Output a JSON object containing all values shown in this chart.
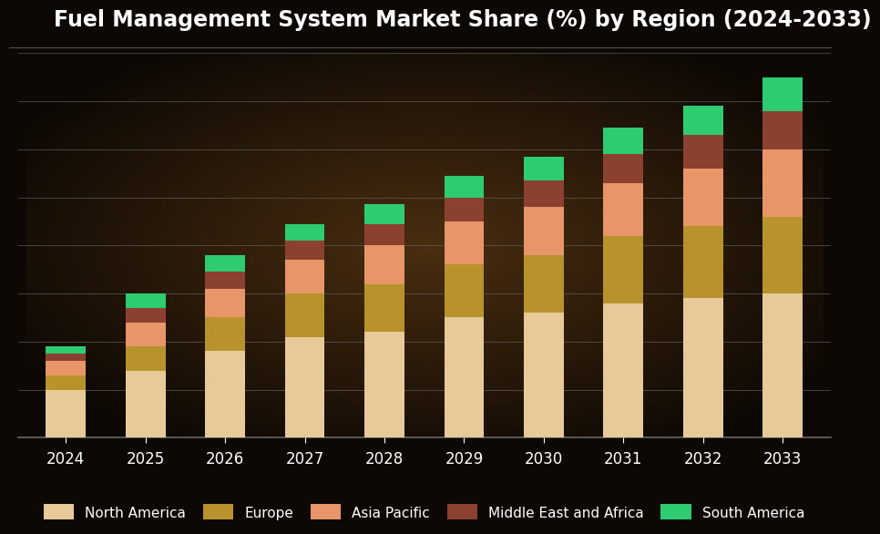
{
  "title": "Fuel Management System Market Share (%) by Region (2024-2033)",
  "years": [
    2024,
    2025,
    2026,
    2027,
    2028,
    2029,
    2030,
    2031,
    2032,
    2033
  ],
  "regions": [
    "North America",
    "Europe",
    "Asia Pacific",
    "Middle East and Africa",
    "South America"
  ],
  "colors": [
    "#E8C99A",
    "#B8922A",
    "#E8956A",
    "#8B4030",
    "#2ECC71"
  ],
  "data": {
    "North America": [
      10,
      14,
      18,
      21,
      22,
      25,
      26,
      28,
      29,
      30
    ],
    "Europe": [
      3,
      5,
      7,
      9,
      10,
      11,
      12,
      14,
      15,
      16
    ],
    "Asia Pacific": [
      3,
      5,
      6,
      7,
      8,
      9,
      10,
      11,
      12,
      14
    ],
    "Middle East and Africa": [
      1.5,
      3,
      3.5,
      4,
      4.5,
      5,
      5.5,
      6,
      7,
      8
    ],
    "South America": [
      1.5,
      3,
      3.5,
      3.5,
      4,
      4.5,
      5,
      5.5,
      6,
      7
    ]
  },
  "ylim": [
    0,
    80
  ],
  "background_grad_inner": "#4a2e10",
  "background_grad_outer": "#0d0804",
  "text_color": "#ffffff",
  "grid_color": "#666666",
  "title_fontsize": 17,
  "tick_fontsize": 12,
  "legend_fontsize": 11,
  "bar_width": 0.5
}
